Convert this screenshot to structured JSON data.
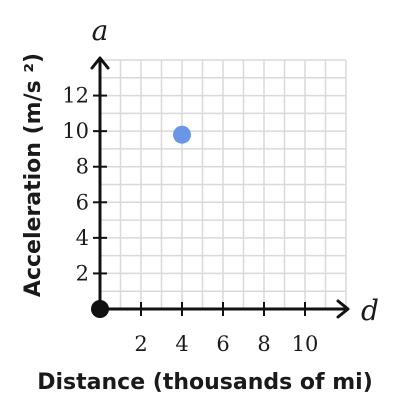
{
  "chart_data": {
    "type": "scatter",
    "title": "",
    "x_variable": "d",
    "y_variable": "a",
    "xlabel": "Distance (thousands of mi)",
    "ylabel": "Acceleration (m/s ²)",
    "xlim": [
      0,
      12
    ],
    "ylim": [
      0,
      14
    ],
    "x_ticks": [
      2,
      4,
      6,
      8,
      10
    ],
    "y_ticks": [
      2,
      4,
      6,
      8,
      10,
      12
    ],
    "grid": true,
    "series": [
      {
        "points": [
          {
            "x": 4,
            "y": 9.8
          }
        ]
      }
    ],
    "origin_marker": true,
    "colors": {
      "point": "#6b95e6",
      "axis": "#111111",
      "grid": "#d9d9d9",
      "origin": "#111111"
    }
  }
}
